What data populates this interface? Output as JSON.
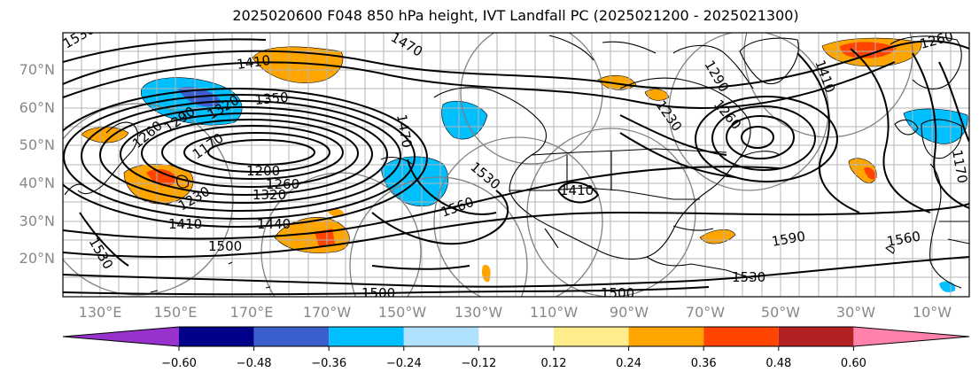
{
  "title": "2025020600 F048 850 hPa height, IVT Landfall PC (2025021200 - 2025021300)",
  "lat_labels": [
    {
      "text": "70°N",
      "lat": 70
    },
    {
      "text": "60°N",
      "lat": 60
    },
    {
      "text": "50°N",
      "lat": 50
    },
    {
      "text": "40°N",
      "lat": 40
    },
    {
      "text": "30°N",
      "lat": 30
    },
    {
      "text": "20°N",
      "lat": 20
    }
  ],
  "lon_labels": [
    "130°E",
    "150°E",
    "170°E",
    "170°W",
    "150°W",
    "130°W",
    "110°W",
    "90°W",
    "70°W",
    "50°W",
    "30°W",
    "10°W"
  ],
  "contour_labels": [
    "1410",
    "1350",
    "1320",
    "1290",
    "1260",
    "1200",
    "1170",
    "1230",
    "1260",
    "1320",
    "1410",
    "1440",
    "1500",
    "1530",
    "1560",
    "1530",
    "1410",
    "1470",
    "1500",
    "1590",
    "1560",
    "1530",
    "1500",
    "1290",
    "1260",
    "1230",
    "1530",
    "1470",
    "1410",
    "1260",
    "1170"
  ],
  "colorbar": {
    "colors": [
      "#9932cc",
      "#00008b",
      "#3a5fcd",
      "#00bfff",
      "#b0e2ff",
      "#ffffff",
      "#ffec8b",
      "#ffa500",
      "#ff4500",
      "#b22222",
      "#ff82ab"
    ],
    "tick_labels": [
      "−0.60",
      "−0.48",
      "−0.36",
      "−0.24",
      "−0.12",
      "0.12",
      "0.24",
      "0.36",
      "0.48",
      "0.60"
    ]
  }
}
